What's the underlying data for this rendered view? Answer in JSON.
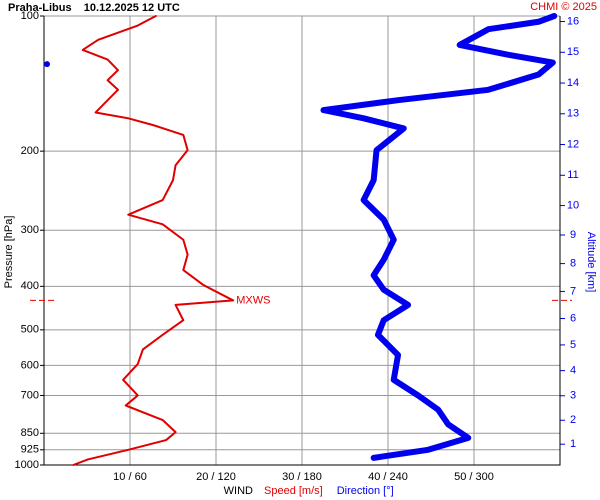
{
  "chart_data": {
    "type": "profile",
    "title": "Praha-Libus    10.12.2025 12 UTC",
    "credit": "CHMI © 2025",
    "ylabel": "Pressure [hPa]",
    "y2label": "Altitude [km]",
    "xlabel": "WIND",
    "ylog": true,
    "ylim": [
      1000,
      100
    ],
    "yticks": [
      100,
      200,
      300,
      400,
      500,
      600,
      700,
      850,
      925,
      1000
    ],
    "xlim": [
      0,
      60
    ],
    "x2lim": [
      0,
      360
    ],
    "xticks": [
      {
        "value": 10,
        "label": "10 / 60"
      },
      {
        "value": 20,
        "label": "20 / 120"
      },
      {
        "value": 30,
        "label": "30 / 180"
      },
      {
        "value": 40,
        "label": "40 / 240"
      },
      {
        "value": 50,
        "label": "50 / 300"
      }
    ],
    "y2ticks": [
      1,
      2,
      3,
      4,
      5,
      6,
      7,
      8,
      9,
      10,
      11,
      12,
      13,
      14,
      15,
      16
    ],
    "grid": true,
    "series": [
      {
        "name": "Speed [m/s]",
        "color": "#e00000",
        "pressure": [
          100,
          105,
          113,
          119,
          125,
          132,
          139,
          146,
          154,
          164,
          169,
          175,
          184,
          199,
          215,
          232,
          257,
          277,
          291,
          315,
          340,
          368,
          397,
          430,
          440,
          476,
          513,
          553,
          596,
          646,
          700,
          737,
          794,
          845,
          880,
          925,
          972,
          1000
        ],
        "values": [
          13.0,
          10.9,
          6.3,
          4.5,
          7.4,
          8.6,
          7.4,
          8.6,
          7.4,
          6.0,
          9.8,
          12.7,
          16.2,
          16.7,
          15.3,
          15.0,
          13.8,
          9.8,
          13.8,
          16.2,
          16.7,
          16.2,
          18.5,
          22.0,
          15.3,
          16.2,
          13.8,
          11.5,
          10.9,
          9.2,
          10.9,
          9.5,
          13.8,
          15.3,
          14.2,
          9.8,
          5.1,
          3.4
        ]
      },
      {
        "name": "Direction [°]",
        "color": "#0000ee",
        "axis": "x2",
        "pressure": [
          100,
          103,
          107,
          116,
          122,
          127,
          135,
          146,
          154,
          162,
          169,
          178,
          199,
          232,
          257,
          284,
          315,
          349,
          378,
          407,
          440,
          476,
          513,
          569,
          646,
          700,
          753,
          812,
          870,
          925,
          964
        ],
        "values": [
          356,
          345,
          310,
          290,
          324,
          355,
          345,
          310,
          247,
          195,
          223,
          251,
          232,
          230,
          223,
          237,
          244,
          237,
          230,
          237,
          254,
          237,
          233,
          247,
          244,
          261,
          275,
          282,
          296,
          268,
          230
        ]
      }
    ],
    "annotation": {
      "text": "MXWS",
      "pressure": 430,
      "value": 22.0
    },
    "marker": {
      "pressure": 128,
      "color": "#0000ee"
    }
  }
}
